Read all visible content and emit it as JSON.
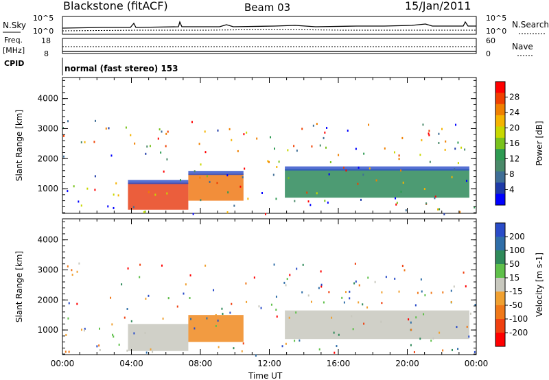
{
  "header": {
    "station": "Blackstone (fitACF)",
    "beam": "Beam 03",
    "date": "15/Jan/2011"
  },
  "status_panels": {
    "nsky_label": "N.Sky",
    "nsearch_label": "N.Search",
    "scale_top": "10^5",
    "scale_bottom": "10^0",
    "freq_label": "Freq.",
    "freq_unit": "[MHz]",
    "freq_ticks": [
      "18",
      "8"
    ],
    "nave_label": "Nave",
    "nave_ticks": [
      "60",
      "0"
    ],
    "cpid_label": "CPID",
    "cpid_text": "normal (fast stereo) 153"
  },
  "chart_data": [
    {
      "type": "heatmap",
      "name": "power",
      "ylabel": "Slant Range [km]",
      "xlabel": "",
      "ylim": [
        180,
        4700
      ],
      "yticks": [
        1000,
        2000,
        3000,
        4000
      ],
      "xlim": [
        0,
        24
      ],
      "colorbar": {
        "label": "Power [dB]",
        "ticks": [
          "4",
          "8",
          "12",
          "16",
          "20",
          "24",
          "28"
        ],
        "range": [
          0,
          32
        ],
        "colors": [
          "#0000ff",
          "#1e3aa8",
          "#3f6e96",
          "#4a8a6a",
          "#2e9a52",
          "#79c21c",
          "#c8d800",
          "#f5b400",
          "#f08000",
          "#f04000",
          "#ff0000"
        ]
      },
      "bands": [
        {
          "t0": 3.8,
          "t1": 7.3,
          "r0": 300,
          "r1": 1200,
          "color": "#e8421a"
        },
        {
          "t0": 7.3,
          "t1": 10.5,
          "r0": 600,
          "r1": 1500,
          "color": "#f07a18"
        },
        {
          "t0": 12.9,
          "t1": 23.6,
          "r0": 700,
          "r1": 1650,
          "color": "#2e8a5a"
        }
      ]
    },
    {
      "type": "heatmap",
      "name": "velocity",
      "ylabel": "Slant Range [km]",
      "xlabel": "Time UT",
      "ylim": [
        180,
        4700
      ],
      "yticks": [
        1000,
        2000,
        3000,
        4000
      ],
      "xlim": [
        0,
        24
      ],
      "xticks": [
        "00:00",
        "04:00",
        "08:00",
        "12:00",
        "16:00",
        "20:00",
        "00:00"
      ],
      "colorbar": {
        "label": "Velocity [m s-1]",
        "ticks": [
          "200",
          "100",
          "50",
          "15",
          "-15",
          "-50",
          "-100",
          "-200"
        ],
        "colors": [
          "#2a4cc8",
          "#2f6ea8",
          "#2f8a5a",
          "#5fc04a",
          "#c8c8be",
          "#f0a030",
          "#f07818",
          "#f04010",
          "#ff0000"
        ]
      },
      "bands": [
        {
          "t0": 3.8,
          "t1": 7.3,
          "r0": 300,
          "r1": 1200,
          "color": "#c8c8be"
        },
        {
          "t0": 7.3,
          "t1": 10.5,
          "r0": 600,
          "r1": 1500,
          "color": "#f08a20"
        },
        {
          "t0": 12.9,
          "t1": 23.6,
          "r0": 700,
          "r1": 1650,
          "color": "#c8c8be"
        }
      ]
    }
  ]
}
